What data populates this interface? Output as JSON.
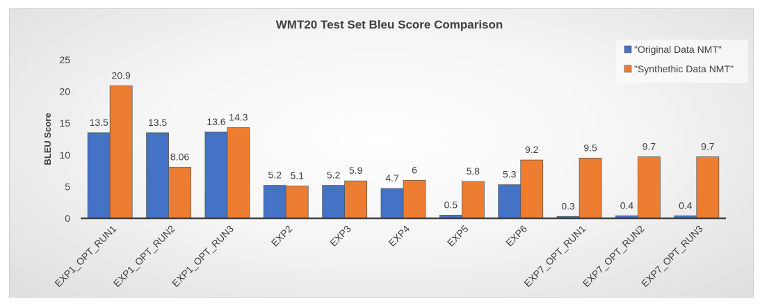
{
  "chart_data": {
    "type": "bar",
    "title": "WMT20 Test Set Bleu Score Comparison",
    "xlabel": "",
    "ylabel": "BLEU Score",
    "ylim": [
      0,
      25
    ],
    "yticks": [
      0,
      5,
      10,
      15,
      20,
      25
    ],
    "grid": false,
    "legend_position": "top-right",
    "categories": [
      "EXP1_OPT_RUN1",
      "EXP1_OPT_RUN2",
      "EXP1_OPT_RUN3",
      "EXP2",
      "EXP3",
      "EXP4",
      "EXP5",
      "EXP6",
      "EXP7_OPT_RUN1",
      "EXP7_OPT_RUN2",
      "EXP7_OPT_RUN3"
    ],
    "series": [
      {
        "name": "\"Original Data NMT\"",
        "color": "#4472C4",
        "values": [
          13.5,
          13.5,
          13.6,
          5.2,
          5.2,
          4.7,
          0.5,
          5.3,
          0.3,
          0.4,
          0.4
        ],
        "labels": [
          "13.5",
          "13.5",
          "13.6",
          "5.2",
          "5.2",
          "4.7",
          "0.5",
          "5.3",
          "0.3",
          "0.4",
          "0.4"
        ]
      },
      {
        "name": "\"Synthethic Data NMT\"",
        "color": "#ED7D31",
        "values": [
          20.9,
          8.06,
          14.3,
          5.1,
          5.9,
          6,
          5.8,
          9.2,
          9.5,
          9.7,
          9.7
        ],
        "labels": [
          "20.9",
          "8.06",
          "14.3",
          "5.1",
          "5.9",
          "6",
          "5.8",
          "9.2",
          "9.5",
          "9.7",
          "9.7"
        ]
      }
    ]
  }
}
